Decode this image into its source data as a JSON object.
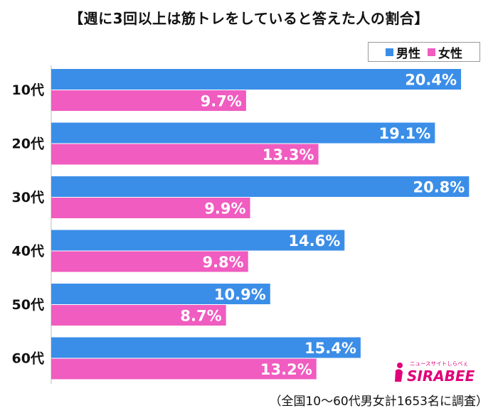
{
  "chart_data": {
    "type": "bar",
    "orientation": "horizontal",
    "title": "【週に3回以上は筋トレをしていると答えた人の割合】",
    "categories": [
      "10代",
      "20代",
      "30代",
      "40代",
      "50代",
      "60代"
    ],
    "series": [
      {
        "name": "男性",
        "color": "#3b8ee8",
        "values": [
          20.4,
          19.1,
          20.8,
          14.6,
          10.9,
          15.4
        ],
        "labels": [
          "20.4%",
          "19.1%",
          "20.8%",
          "14.6%",
          "10.9%",
          "15.4%"
        ]
      },
      {
        "name": "女性",
        "color": "#f05cc0",
        "values": [
          9.7,
          13.3,
          9.9,
          9.8,
          8.7,
          13.2
        ],
        "labels": [
          "9.7%",
          "13.3%",
          "9.9%",
          "9.8%",
          "8.7%",
          "13.2%"
        ]
      }
    ],
    "xlim": [
      0,
      21
    ],
    "grid": false,
    "legend": "top-right"
  },
  "note": "（全国10〜60代男女計1653名に調査）",
  "logo": {
    "brand": "SIRABEE",
    "tagline": "ニュースサイトしらべぇ"
  }
}
